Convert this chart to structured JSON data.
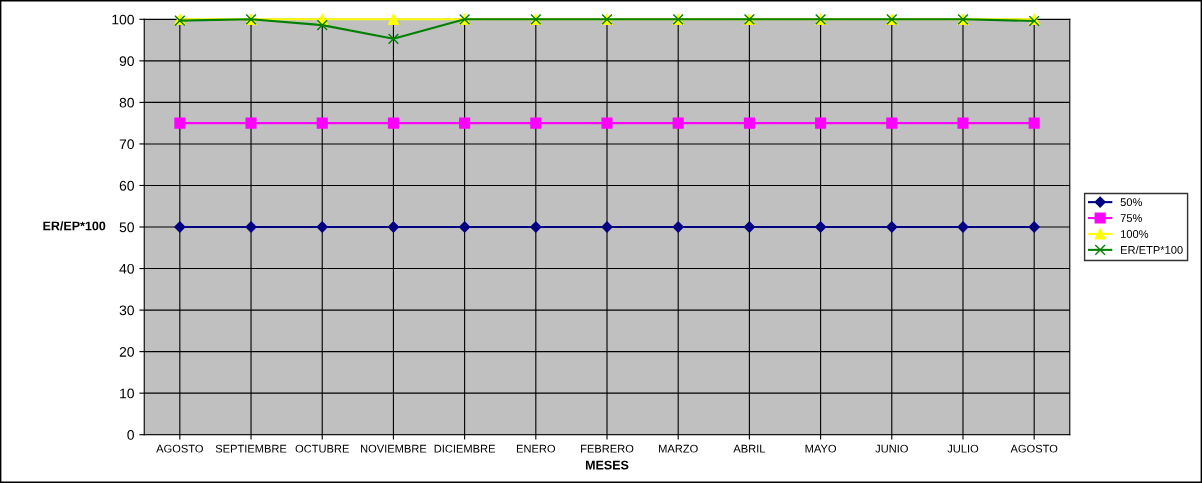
{
  "chart_data": {
    "type": "line",
    "xlabel": "MESES",
    "ylabel": "ER/EP*100",
    "categories": [
      "AGOSTO",
      "SEPTIEMBRE",
      "OCTUBRE",
      "NOVIEMBRE",
      "DICIEMBRE",
      "ENERO",
      "FEBRERO",
      "MARZO",
      "ABRIL",
      "MAYO",
      "JUNIO",
      "JULIO",
      "AGOSTO"
    ],
    "series": [
      {
        "name": "50%",
        "color": "#000080",
        "marker": "diamond",
        "values": [
          50,
          50,
          50,
          50,
          50,
          50,
          50,
          50,
          50,
          50,
          50,
          50,
          50
        ]
      },
      {
        "name": "75%",
        "color": "#ff00ff",
        "marker": "square",
        "values": [
          75,
          75,
          75,
          75,
          75,
          75,
          75,
          75,
          75,
          75,
          75,
          75,
          75
        ]
      },
      {
        "name": "100%",
        "color": "#ffff00",
        "marker": "triangle",
        "values": [
          100,
          100,
          100,
          100,
          100,
          100,
          100,
          100,
          100,
          100,
          100,
          100,
          100
        ]
      },
      {
        "name": "ER/ETP*100",
        "color": "#008000",
        "marker": "cross",
        "values": [
          99.7,
          100,
          98.6,
          95.3,
          100,
          100,
          100,
          100,
          100,
          100,
          100,
          100,
          99.6
        ]
      }
    ],
    "ylim": [
      0,
      100
    ],
    "yticks": [
      0,
      10,
      20,
      30,
      40,
      50,
      60,
      70,
      80,
      90,
      100
    ],
    "grid": true,
    "legend": "right"
  }
}
